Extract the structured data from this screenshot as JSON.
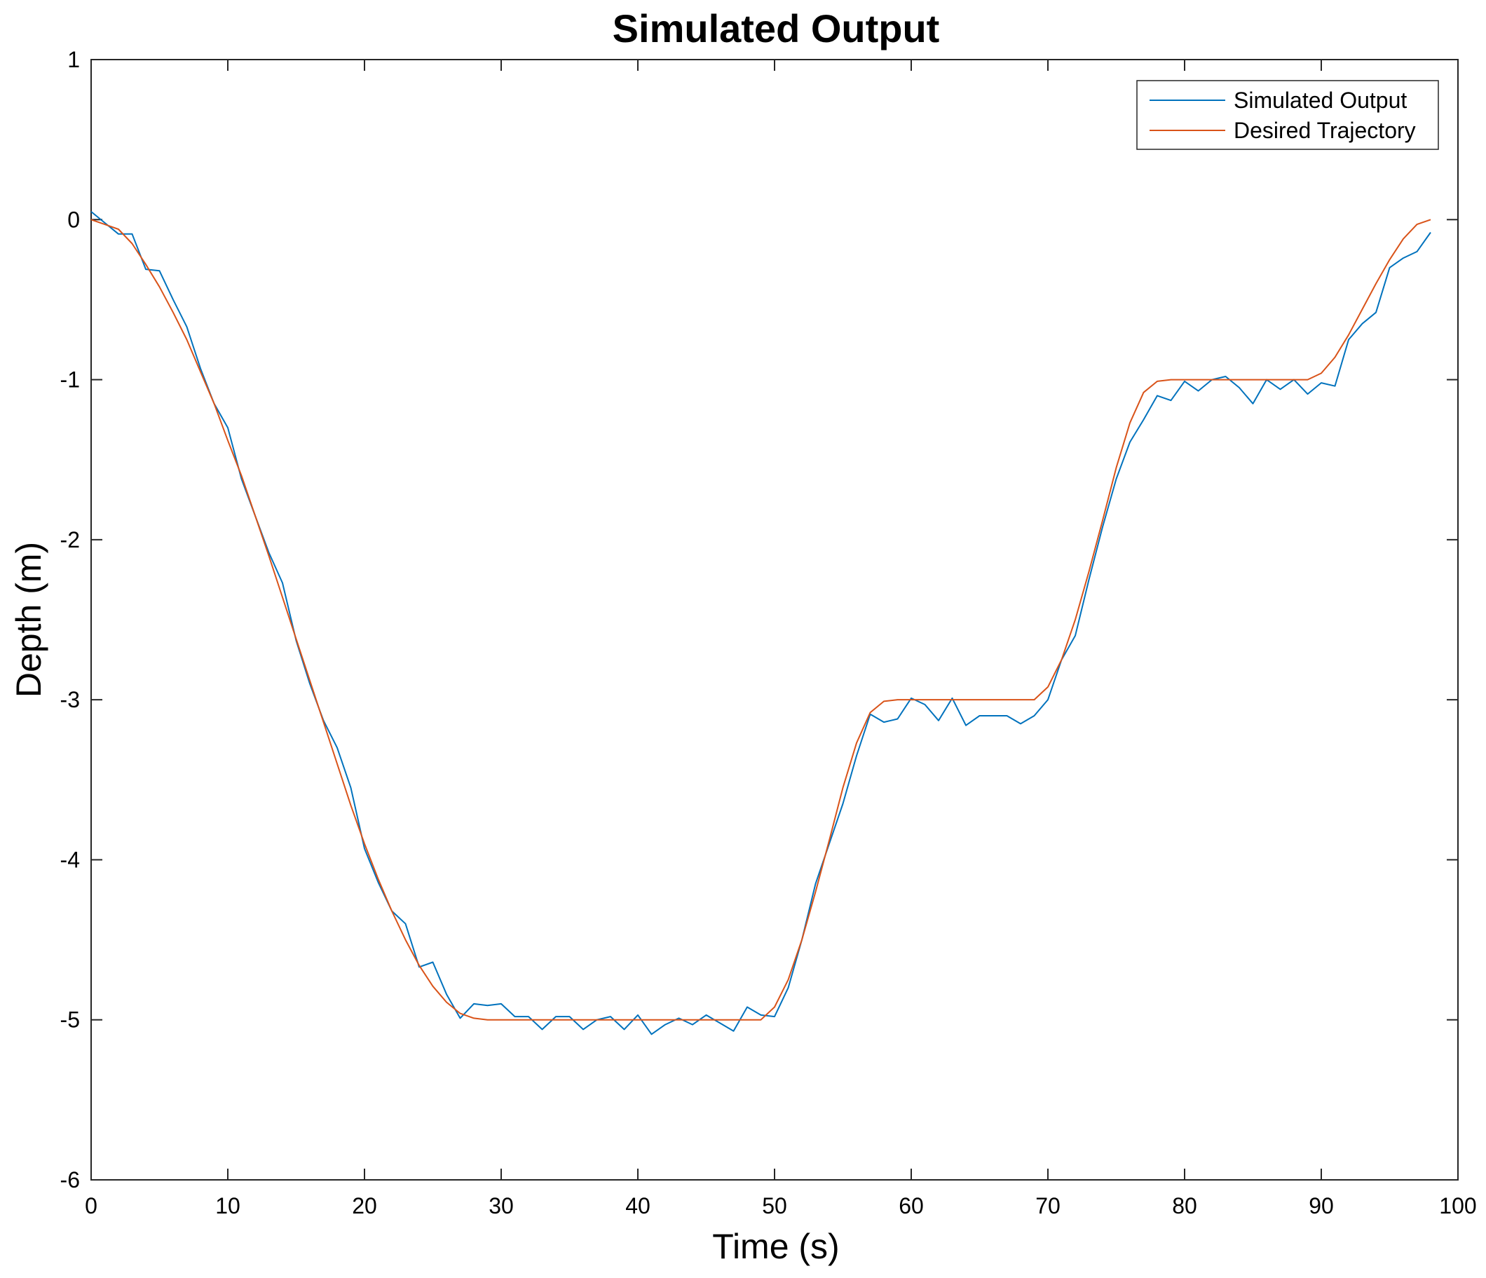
{
  "chart_data": {
    "type": "line",
    "title": "Simulated Output",
    "xlabel": "Time (s)",
    "ylabel": "Depth (m)",
    "xlim": [
      0,
      100
    ],
    "ylim": [
      -6,
      1
    ],
    "xticks": [
      0,
      10,
      20,
      30,
      40,
      50,
      60,
      70,
      80,
      90,
      100
    ],
    "yticks": [
      1,
      0,
      -1,
      -2,
      -3,
      -4,
      -5,
      -6
    ],
    "grid": false,
    "legend": "top-right",
    "series": [
      {
        "name": "Simulated Output",
        "color": "#0072BD",
        "x": [
          0,
          1,
          2,
          3,
          4,
          5,
          6,
          7,
          8,
          9,
          10,
          11,
          12,
          13,
          14,
          15,
          16,
          17,
          18,
          19,
          20,
          21,
          22,
          23,
          24,
          25,
          26,
          27,
          28,
          29,
          30,
          31,
          32,
          33,
          34,
          35,
          36,
          37,
          38,
          39,
          40,
          41,
          42,
          43,
          44,
          45,
          46,
          47,
          48,
          49,
          50,
          51,
          52,
          53,
          54,
          55,
          56,
          57,
          58,
          59,
          60,
          61,
          62,
          63,
          64,
          65,
          66,
          67,
          68,
          69,
          70,
          71,
          72,
          73,
          74,
          75,
          76,
          77,
          78,
          79,
          80,
          81,
          82,
          83,
          84,
          85,
          86,
          87,
          88,
          89,
          90,
          91,
          92,
          93,
          94,
          95,
          96,
          97,
          98
        ],
        "y": [
          0.05,
          -0.02,
          -0.09,
          -0.09,
          -0.31,
          -0.32,
          -0.5,
          -0.67,
          -0.93,
          -1.15,
          -1.3,
          -1.62,
          -1.85,
          -2.08,
          -2.27,
          -2.63,
          -2.9,
          -3.13,
          -3.3,
          -3.55,
          -3.93,
          -4.14,
          -4.32,
          -4.4,
          -4.67,
          -4.64,
          -4.84,
          -4.99,
          -4.9,
          -4.91,
          -4.9,
          -4.98,
          -4.98,
          -5.06,
          -4.98,
          -4.98,
          -5.06,
          -5.0,
          -4.98,
          -5.06,
          -4.97,
          -5.09,
          -5.03,
          -4.99,
          -5.03,
          -4.97,
          -5.02,
          -5.07,
          -4.92,
          -4.97,
          -4.98,
          -4.8,
          -4.5,
          -4.15,
          -3.9,
          -3.65,
          -3.35,
          -3.09,
          -3.14,
          -3.12,
          -2.99,
          -3.03,
          -3.13,
          -2.99,
          -3.16,
          -3.1,
          -3.1,
          -3.1,
          -3.15,
          -3.1,
          -3.0,
          -2.75,
          -2.6,
          -2.25,
          -1.92,
          -1.62,
          -1.39,
          -1.25,
          -1.1,
          -1.13,
          -1.01,
          -1.07,
          -1.0,
          -0.98,
          -1.05,
          -1.15,
          -1.0,
          -1.06,
          -1.0,
          -1.09,
          -1.02,
          -1.04,
          -0.75,
          -0.65,
          -0.58,
          -0.3,
          -0.24,
          -0.2,
          -0.08
        ]
      },
      {
        "name": "Desired Trajectory",
        "color": "#D95319",
        "x": [
          0,
          1,
          2,
          3,
          4,
          5,
          6,
          7,
          8,
          9,
          10,
          11,
          12,
          13,
          14,
          15,
          16,
          17,
          18,
          19,
          20,
          21,
          22,
          23,
          24,
          25,
          26,
          27,
          28,
          29,
          30,
          35,
          40,
          45,
          49,
          50,
          51,
          52,
          53,
          54,
          55,
          56,
          57,
          58,
          59,
          60,
          65,
          69,
          70,
          71,
          72,
          73,
          74,
          75,
          76,
          77,
          78,
          79,
          80,
          85,
          89,
          90,
          91,
          92,
          93,
          94,
          95,
          96,
          97,
          98
        ],
        "y": [
          0.0,
          -0.03,
          -0.06,
          -0.15,
          -0.28,
          -0.42,
          -0.58,
          -0.75,
          -0.95,
          -1.15,
          -1.38,
          -1.6,
          -1.85,
          -2.1,
          -2.36,
          -2.62,
          -2.88,
          -3.14,
          -3.4,
          -3.66,
          -3.9,
          -4.12,
          -4.32,
          -4.5,
          -4.66,
          -4.79,
          -4.89,
          -4.96,
          -4.99,
          -5.0,
          -5.0,
          -5.0,
          -5.0,
          -5.0,
          -5.0,
          -4.92,
          -4.75,
          -4.5,
          -4.2,
          -3.88,
          -3.55,
          -3.27,
          -3.08,
          -3.01,
          -3.0,
          -3.0,
          -3.0,
          -3.0,
          -2.92,
          -2.75,
          -2.5,
          -2.2,
          -1.88,
          -1.55,
          -1.27,
          -1.08,
          -1.01,
          -1.0,
          -1.0,
          -1.0,
          -1.0,
          -0.96,
          -0.86,
          -0.72,
          -0.56,
          -0.4,
          -0.25,
          -0.12,
          -0.03,
          0.0
        ]
      }
    ]
  }
}
